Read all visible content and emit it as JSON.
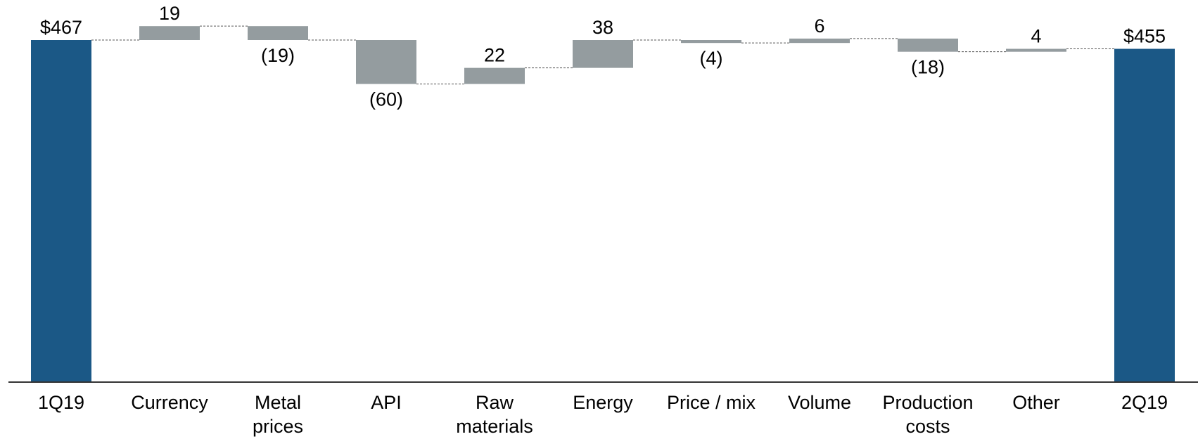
{
  "chart_data": {
    "type": "bar",
    "subtype": "waterfall",
    "title": "",
    "xlabel": "",
    "ylabel": "",
    "ylim": [
      0,
      467
    ],
    "grid": false,
    "legend": "none",
    "categories": [
      "1Q19",
      "Currency",
      "Metal prices",
      "API",
      "Raw materials",
      "Energy",
      "Price / mix",
      "Volume",
      "Production costs",
      "Other",
      "2Q19"
    ],
    "category_lines": [
      [
        "1Q19"
      ],
      [
        "Currency"
      ],
      [
        "Metal",
        "prices"
      ],
      [
        "API"
      ],
      [
        "Raw",
        "materials"
      ],
      [
        "Energy"
      ],
      [
        "Price / mix"
      ],
      [
        "Volume"
      ],
      [
        "Production",
        "costs"
      ],
      [
        "Other"
      ],
      [
        "2Q19"
      ]
    ],
    "values": [
      467,
      19,
      -19,
      -60,
      22,
      38,
      -4,
      6,
      -18,
      4,
      455
    ],
    "kinds": [
      "total",
      "delta",
      "delta",
      "delta",
      "delta",
      "delta",
      "delta",
      "delta",
      "delta",
      "delta",
      "total"
    ],
    "value_labels": [
      "$467",
      "19",
      "(19)",
      "(60)",
      "22",
      "38",
      "(4)",
      "6",
      "(18)",
      "4",
      "$455"
    ],
    "colors": {
      "total": "#1b5886",
      "delta": "#949c9f",
      "connector": "#555555",
      "axis": "#333333"
    }
  }
}
